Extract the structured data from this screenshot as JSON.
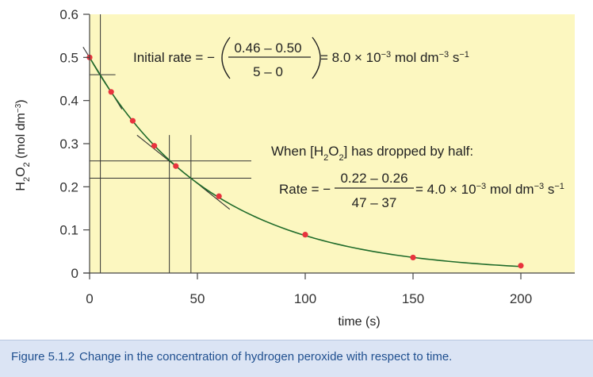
{
  "chart_data": {
    "type": "line",
    "xlabel": "time (s)",
    "ylabel_parts": [
      "H",
      "2",
      "O",
      "2",
      " (mol dm",
      "−3",
      ")"
    ],
    "xlim": [
      0,
      225
    ],
    "ylim": [
      0,
      0.6
    ],
    "xticks": [
      0,
      50,
      100,
      150,
      200
    ],
    "xtick_labels": [
      "0",
      "50",
      "100",
      "150",
      "200"
    ],
    "yticks": [
      0,
      0.1,
      0.2,
      0.3,
      0.4,
      0.5,
      0.6
    ],
    "ytick_labels": [
      "0",
      "0.1",
      "0.2",
      "0.3",
      "0.4",
      "0.5",
      "0.6"
    ],
    "series": [
      {
        "x": [
          0,
          10,
          20,
          30,
          40,
          60,
          100,
          150,
          200
        ],
        "y": [
          0.5,
          0.42,
          0.353,
          0.295,
          0.248,
          0.178,
          0.089,
          0.036,
          0.017
        ]
      }
    ],
    "curve_k": 0.0175,
    "tangents": [
      {
        "at_x": 0,
        "slope": -0.008,
        "from_x": -3,
        "to_x": 15
      },
      {
        "at_x": 42,
        "slope": -0.004,
        "from_x": 22,
        "to_x": 65
      }
    ],
    "guide_lines": {
      "vertical": [
        0,
        5,
        37,
        47
      ],
      "horizontal": [
        0.46,
        0.26,
        0.22
      ],
      "horizontal_x_end": [
        12,
        75,
        75
      ]
    },
    "colors": {
      "plot_background": "#fcf7c0",
      "curve": "#1f6b2a",
      "points": "#e8333d",
      "guides": "#333333",
      "caption_text": "#1f4f8f"
    }
  },
  "annotation1": {
    "prefix": "Initial rate = −",
    "numerator": "0.46 – 0.50",
    "denominator": "5 – 0",
    "result_base": "= 8.0 × 10",
    "exp1": "−3",
    "unit1": " mol dm",
    "exp2": "−3",
    "unit2": " s",
    "exp3": "−1"
  },
  "annotation2": {
    "line1_a": "When [H",
    "line1_sub1": "2",
    "line1_b": "O",
    "line1_sub2": "2",
    "line1_c": "] has dropped by half:",
    "prefix": "Rate = −",
    "numerator": "0.22 – 0.26",
    "denominator": "47 – 37",
    "result_base": "= 4.0 × 10",
    "exp1": "−3",
    "unit1": " mol dm",
    "exp2": "−3",
    "unit2": " s",
    "exp3": "−1"
  },
  "caption": {
    "label": "Figure 5.1.2",
    "text": "Change in the concentration of hydrogen peroxide with respect to time."
  }
}
